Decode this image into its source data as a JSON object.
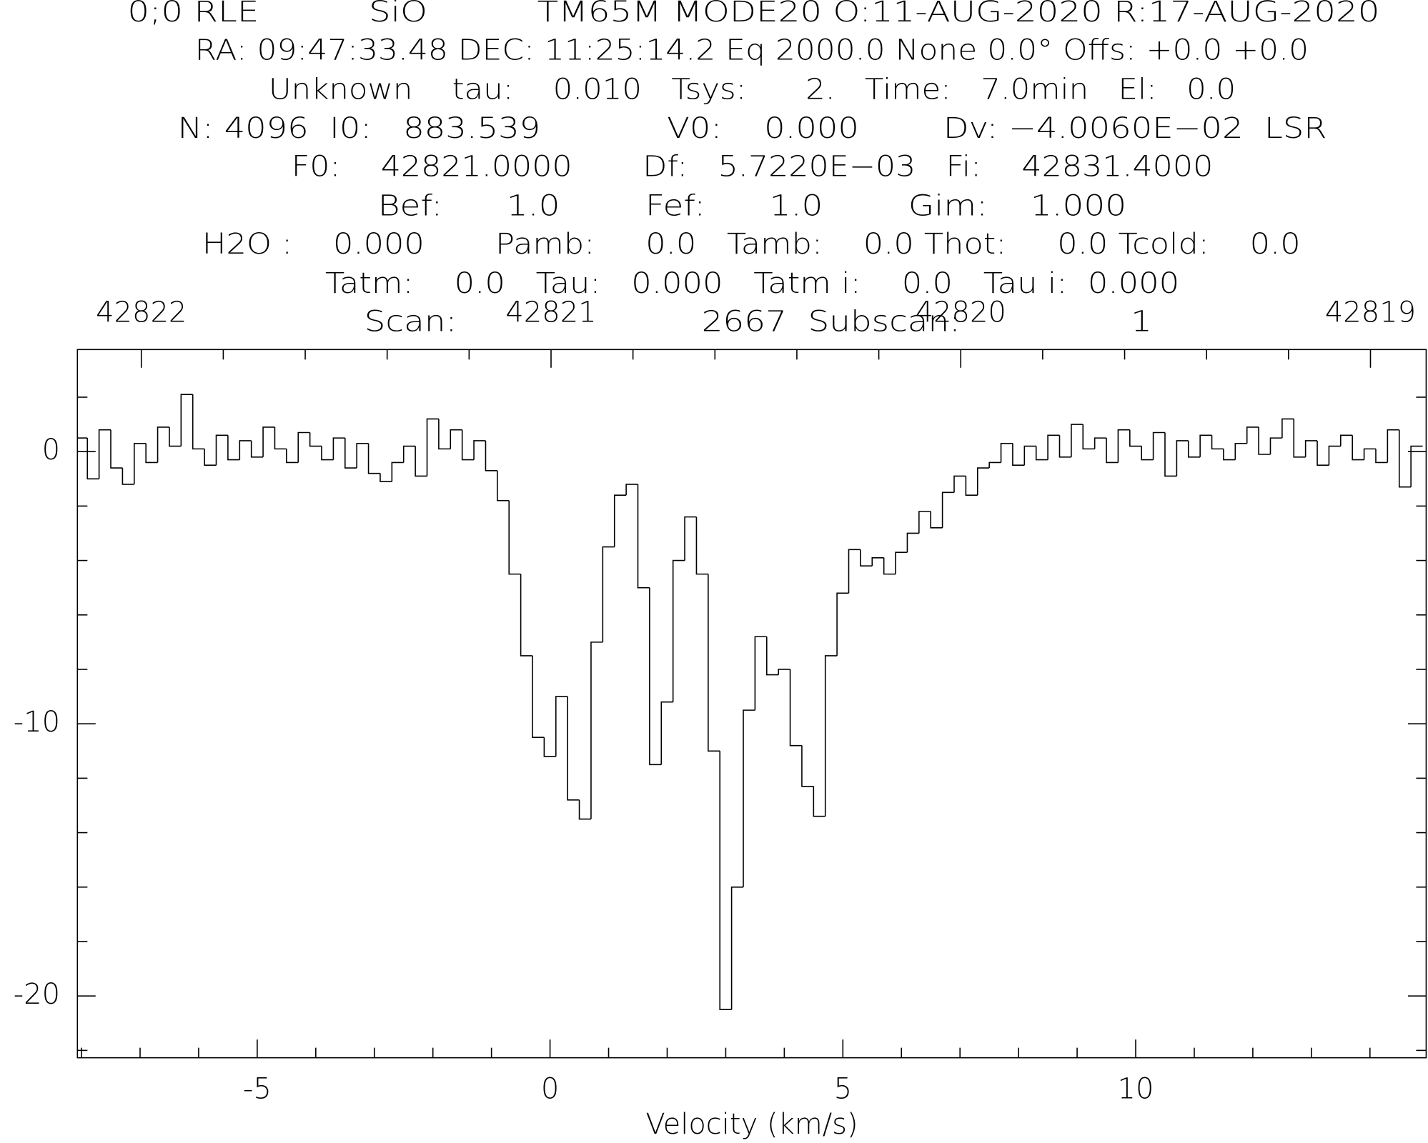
{
  "chart_data": {
    "type": "line",
    "step": true,
    "header": [
      "0;0 RLE          SiO          TM65M MODE20 O:11-AUG-2020 R:17-AUG-2020",
      "RA: 09:47:33.48 DEC: 11:25:14.2 Eq 2000.0 None 0.0° Offs: +0.0 +0.0",
      "Unknown    tau:    0.010   Tsys:      2.   Time:   7.0min   El:   0.0",
      "N: 4096  I0:   883.539            V0:    0.000        Dv: −4.0060E−02  LSR",
      "F0:    42821.0000       Df:   5.7220E−03   Fi:    42831.4000",
      "Bef:      1.0        Fef:      1.0        Gim:    1.000",
      "H2O :    0.000       Pamb:     0.0   Tamb:    0.0 Thot:     0.0 Tcold:    0.0",
      "Tatm:    0.0   Tau:   0.000   Tatm i:    0.0   Tau i:  0.000",
      "Scan:                       2667  Subscan:                1"
    ],
    "xlabel": "Velocity (km/s)",
    "color": "#000000",
    "xlim": [
      -8.07,
      14.96
    ],
    "xticks": [
      -5,
      0,
      5,
      10
    ],
    "xminorticks": [
      -8,
      -7,
      -6,
      -4,
      -3,
      -2,
      -1,
      1,
      2,
      3,
      4,
      6,
      7,
      8,
      9,
      11,
      12,
      13,
      14
    ],
    "x2lim": [
      42822.156,
      42818.864
    ],
    "x2ticks": [
      42822,
      42821,
      42820,
      42819
    ],
    "x2minorticks": [
      42821.8,
      42821.6,
      42821.4,
      42821.2,
      42820.8,
      42820.6,
      42820.4,
      42820.2,
      42819.8,
      42819.6,
      42819.4,
      42819.2
    ],
    "ylim": [
      -22.27,
      3.75
    ],
    "yticks": [
      -20,
      -10,
      0
    ],
    "yminorticks": [
      -22,
      -18,
      -16,
      -14,
      -12,
      -8,
      -6,
      -4,
      -2,
      2
    ],
    "x": [
      -8.0,
      -7.8,
      -7.6,
      -7.4,
      -7.2,
      -7.0,
      -6.8,
      -6.6,
      -6.4,
      -6.2,
      -6.0,
      -5.8,
      -5.6,
      -5.4,
      -5.2,
      -5.0,
      -4.8,
      -4.6,
      -4.4,
      -4.2,
      -4.0,
      -3.8,
      -3.6,
      -3.4,
      -3.2,
      -3.0,
      -2.8,
      -2.6,
      -2.4,
      -2.2,
      -2.0,
      -1.8,
      -1.6,
      -1.4,
      -1.2,
      -1.0,
      -0.8,
      -0.6,
      -0.4,
      -0.2,
      0.0,
      0.2,
      0.4,
      0.6,
      0.8,
      1.0,
      1.2,
      1.4,
      1.6,
      1.8,
      2.0,
      2.2,
      2.4,
      2.6,
      2.8,
      3.0,
      3.2,
      3.4,
      3.6,
      3.8,
      4.0,
      4.2,
      4.4,
      4.6,
      4.8,
      5.0,
      5.2,
      5.4,
      5.6,
      5.8,
      6.0,
      6.2,
      6.4,
      6.6,
      6.8,
      7.0,
      7.2,
      7.4,
      7.6,
      7.8,
      8.0,
      8.2,
      8.4,
      8.6,
      8.8,
      9.0,
      9.2,
      9.4,
      9.6,
      9.8,
      10.0,
      10.2,
      10.4,
      10.6,
      10.8,
      11.0,
      11.2,
      11.4,
      11.6,
      11.8,
      12.0,
      12.2,
      12.4,
      12.6,
      12.8,
      13.0,
      13.2,
      13.4,
      13.6,
      13.8,
      14.0,
      14.2,
      14.4,
      14.6,
      14.8
    ],
    "values": [
      0.5,
      -1.0,
      0.8,
      -0.6,
      -1.2,
      0.3,
      -0.4,
      0.9,
      0.2,
      2.1,
      0.1,
      -0.5,
      0.6,
      -0.3,
      0.4,
      -0.2,
      0.9,
      0.1,
      -0.4,
      0.7,
      0.2,
      -0.3,
      0.5,
      -0.6,
      0.3,
      -0.8,
      -1.1,
      -0.4,
      0.2,
      -0.9,
      1.2,
      0.1,
      0.8,
      -0.3,
      0.4,
      -0.7,
      -1.8,
      -4.5,
      -7.5,
      -10.5,
      -11.2,
      -9.0,
      -12.8,
      -13.5,
      -7.0,
      -3.5,
      -1.6,
      -1.2,
      -5.0,
      -11.5,
      -9.2,
      -4.0,
      -2.4,
      -4.5,
      -11.0,
      -20.5,
      -16.0,
      -9.5,
      -6.8,
      -8.2,
      -8.0,
      -10.8,
      -12.3,
      -13.4,
      -7.5,
      -5.2,
      -3.6,
      -4.2,
      -3.9,
      -4.5,
      -3.7,
      -3.0,
      -2.2,
      -2.8,
      -1.5,
      -0.9,
      -1.6,
      -0.6,
      -0.4,
      0.3,
      -0.5,
      0.2,
      -0.3,
      0.6,
      -0.2,
      1.0,
      0.1,
      0.5,
      -0.4,
      0.8,
      0.2,
      -0.3,
      0.7,
      -0.9,
      0.4,
      -0.2,
      0.6,
      0.1,
      -0.3,
      0.3,
      0.9,
      -0.1,
      0.5,
      1.2,
      -0.2,
      0.4,
      -0.5,
      0.2,
      0.6,
      -0.3,
      0.1,
      -0.4,
      0.8,
      -1.3,
      0.2
    ]
  }
}
